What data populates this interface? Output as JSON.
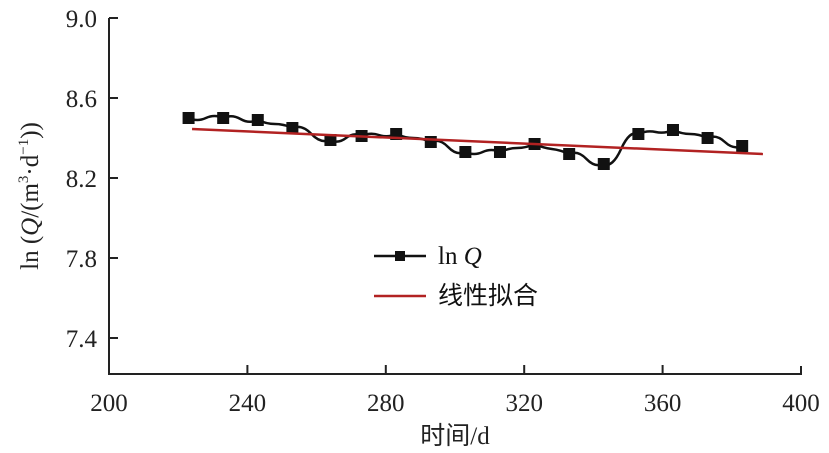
{
  "chart_data": {
    "type": "line",
    "title": "",
    "xlabel": "时间/d",
    "ylabel": "ln (Q/(m³·d⁻¹))",
    "xlim": [
      200,
      400
    ],
    "ylim": [
      7.22,
      9.0
    ],
    "x_ticks": [
      "200",
      "240",
      "280",
      "320",
      "360",
      "400"
    ],
    "y_ticks": [
      "9.0",
      "8.6",
      "8.2",
      "7.8",
      "7.4"
    ],
    "grid": false,
    "legend_position": "center",
    "series": [
      {
        "name": "ln Q",
        "style": "line-with-square-markers",
        "color": "#111111",
        "x": [
          223,
          233,
          243,
          253,
          264,
          273,
          283,
          293,
          303,
          313,
          323,
          333,
          343,
          353,
          363,
          373,
          383
        ],
        "values": [
          8.5,
          8.5,
          8.49,
          8.45,
          8.39,
          8.41,
          8.42,
          8.38,
          8.33,
          8.33,
          8.37,
          8.32,
          8.27,
          8.42,
          8.44,
          8.4,
          8.36
        ]
      },
      {
        "name": "线性拟合",
        "style": "line",
        "color": "#b22222",
        "x": [
          224,
          389
        ],
        "values": [
          8.445,
          8.32
        ]
      }
    ]
  },
  "legend": {
    "items": [
      {
        "label_main": "ln ",
        "label_italic": "Q"
      },
      {
        "label_main": "线性拟合"
      }
    ]
  },
  "axes": {
    "ylabel_parts": {
      "prefix": "ln (",
      "italic": "Q",
      "mid": "/(m",
      "sup3": "3",
      "dot": "·d",
      "supm1": "−1",
      "suffix": "))"
    }
  }
}
